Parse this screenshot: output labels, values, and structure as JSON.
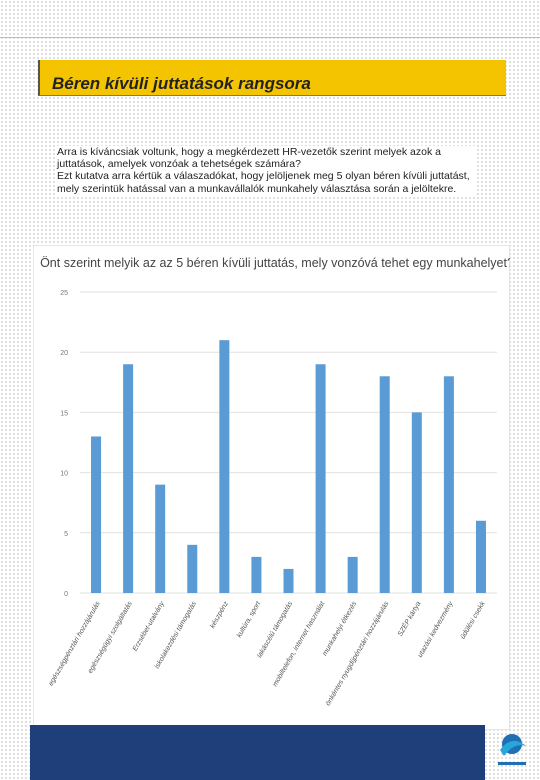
{
  "header": {
    "title": "Béren kívüli juttatások rangsora"
  },
  "intro": [
    "Arra is kíváncsiak voltunk, hogy a megkérdezett HR-vezetők szerint melyek azok a juttatások, amelyek vonzóak a tehetségek számára?",
    "Ezt kutatva arra kértük a válaszadókat, hogy jelöljenek meg 5 olyan béren kívüli juttatást, mely szerintük hatással van a munkavállalók munkahely választása során a jelöltekre."
  ],
  "chart_data": {
    "type": "bar",
    "title": "Önt szerint melyik az az 5 béren kívüli juttatás, mely vonzóvá tehet egy munkahelyet?",
    "categories": [
      "egészségpénztári hozzájárulás",
      "egészségügyi szolgáltatás",
      "Erzsébet-utalvány",
      "iskolakezdési támogatás",
      "készpénz",
      "kultúra, sport",
      "lakáscélú támogatás",
      "mobiltelefon, internet használat",
      "munkahelyi étkezés",
      "önkéntes nyugdíjpénztári hozzájárulás",
      "SZÉP kártya",
      "utazási kedvezmény",
      "üdülési csekk"
    ],
    "values": [
      13,
      19,
      9,
      4,
      21,
      3,
      2,
      19,
      3,
      18,
      15,
      18,
      6
    ],
    "color": "#5b9bd5",
    "ylim": [
      0,
      25
    ],
    "yticks": [
      0,
      5,
      10,
      15,
      20,
      25
    ],
    "grid": true
  }
}
